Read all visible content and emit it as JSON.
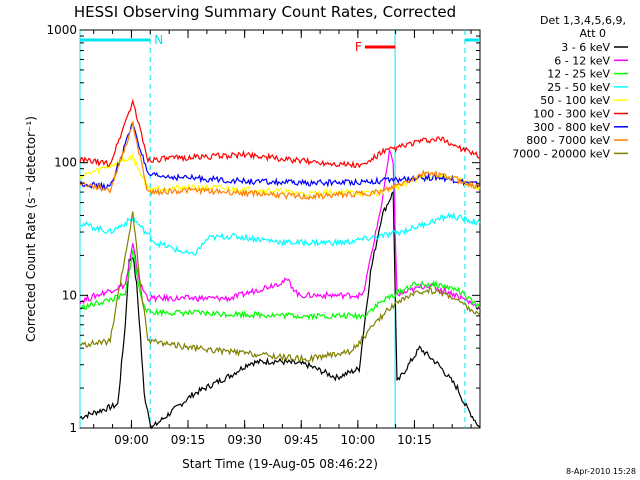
{
  "chart_data": {
    "type": "line",
    "title": "HESSI Observing Summary Count Rates, Corrected",
    "xlabel": "Start Time (19-Aug-05 08:46:22)",
    "ylabel": "Corrected Count Rate (s⁻¹ detector⁻¹)",
    "yscale": "log",
    "ylim": [
      1,
      1000
    ],
    "xlim_minutes_after_start": [
      0,
      106
    ],
    "x_tick_labels": [
      "09:00",
      "09:15",
      "09:30",
      "09:45",
      "10:00",
      "10:15"
    ],
    "y_tick_labels": [
      "1",
      "10",
      "100",
      "1000"
    ],
    "legend_header": [
      "Det 1,3,4,5,6,9,",
      "Att 0"
    ],
    "legend_placement": "right",
    "date_stamp": "8-Apr-2010 15:28",
    "flags": [
      {
        "label": "N",
        "color": "#00e5ee",
        "segments": [
          [
            0,
            18.6
          ],
          [
            102,
            106
          ]
        ]
      },
      {
        "label": "F",
        "color": "#ff0000",
        "segments": [
          [
            75.5,
            83.5
          ]
        ]
      }
    ],
    "boundary_lines_minutes": [
      0,
      18.6,
      83.5,
      102
    ],
    "series": [
      {
        "name": "3 - 6 keV",
        "color": "#000000",
        "points": [
          [
            0,
            1.2
          ],
          [
            10,
            1.5
          ],
          [
            12,
            6
          ],
          [
            13,
            18
          ],
          [
            14,
            20
          ],
          [
            15,
            12
          ],
          [
            16,
            5
          ],
          [
            17,
            1.8
          ],
          [
            19,
            1
          ],
          [
            30,
            1.8
          ],
          [
            40,
            2.5
          ],
          [
            45,
            3.1
          ],
          [
            52,
            3.2
          ],
          [
            60,
            3
          ],
          [
            68,
            2.4
          ],
          [
            74,
            2.8
          ],
          [
            77,
            15
          ],
          [
            80,
            40
          ],
          [
            83,
            60
          ],
          [
            84,
            2.2
          ],
          [
            90,
            4
          ],
          [
            95,
            3
          ],
          [
            100,
            2
          ],
          [
            102,
            1.5
          ],
          [
            106,
            1
          ]
        ]
      },
      {
        "name": "6 - 12 keV",
        "color": "#ff00ff",
        "points": [
          [
            0,
            9
          ],
          [
            12,
            12
          ],
          [
            14,
            24
          ],
          [
            16,
            12
          ],
          [
            18,
            9.5
          ],
          [
            40,
            9.5
          ],
          [
            55,
            13
          ],
          [
            58,
            10
          ],
          [
            75,
            10
          ],
          [
            80,
            50
          ],
          [
            82,
            120
          ],
          [
            83,
            100
          ],
          [
            84,
            10
          ],
          [
            92,
            12
          ],
          [
            100,
            10
          ],
          [
            106,
            8
          ]
        ]
      },
      {
        "name": "12 - 25 keV",
        "color": "#00ff00",
        "points": [
          [
            0,
            8
          ],
          [
            12,
            10
          ],
          [
            14,
            22
          ],
          [
            16,
            10
          ],
          [
            18,
            7.5
          ],
          [
            60,
            7
          ],
          [
            75,
            7
          ],
          [
            80,
            9
          ],
          [
            83,
            10
          ],
          [
            88,
            12
          ],
          [
            95,
            12
          ],
          [
            100,
            11
          ],
          [
            106,
            8
          ]
        ]
      },
      {
        "name": "25 - 50 keV",
        "color": "#00ffff",
        "points": [
          [
            0,
            35
          ],
          [
            8,
            30
          ],
          [
            14,
            38
          ],
          [
            20,
            25
          ],
          [
            30,
            20
          ],
          [
            34,
            27
          ],
          [
            40,
            28
          ],
          [
            55,
            25
          ],
          [
            70,
            25
          ],
          [
            80,
            28
          ],
          [
            85,
            30
          ],
          [
            92,
            35
          ],
          [
            98,
            40
          ],
          [
            106,
            35
          ]
        ]
      },
      {
        "name": "50 - 100 keV",
        "color": "#ffff00",
        "points": [
          [
            0,
            78
          ],
          [
            14,
            110
          ],
          [
            18,
            64
          ],
          [
            30,
            65
          ],
          [
            50,
            62
          ],
          [
            60,
            58
          ],
          [
            70,
            60
          ],
          [
            78,
            58
          ],
          [
            84,
            66
          ],
          [
            92,
            80
          ],
          [
            98,
            78
          ],
          [
            106,
            65
          ]
        ]
      },
      {
        "name": "100 - 300 keV",
        "color": "#ff0000",
        "points": [
          [
            0,
            105
          ],
          [
            8,
            98
          ],
          [
            14,
            290
          ],
          [
            18,
            105
          ],
          [
            30,
            110
          ],
          [
            45,
            115
          ],
          [
            55,
            105
          ],
          [
            65,
            100
          ],
          [
            75,
            95
          ],
          [
            80,
            120
          ],
          [
            90,
            145
          ],
          [
            96,
            150
          ],
          [
            106,
            110
          ]
        ]
      },
      {
        "name": "300 - 800 keV",
        "color": "#0000ff",
        "points": [
          [
            0,
            70
          ],
          [
            8,
            65
          ],
          [
            14,
            200
          ],
          [
            18,
            80
          ],
          [
            35,
            75
          ],
          [
            45,
            72
          ],
          [
            60,
            70
          ],
          [
            75,
            72
          ],
          [
            84,
            74
          ],
          [
            95,
            78
          ],
          [
            106,
            68
          ]
        ]
      },
      {
        "name": "800 - 7000 keV",
        "color": "#ff8000",
        "points": [
          [
            0,
            70
          ],
          [
            8,
            62
          ],
          [
            14,
            195
          ],
          [
            18,
            60
          ],
          [
            30,
            62
          ],
          [
            50,
            58
          ],
          [
            60,
            55
          ],
          [
            72,
            58
          ],
          [
            80,
            60
          ],
          [
            92,
            85
          ],
          [
            98,
            78
          ],
          [
            106,
            65
          ]
        ]
      },
      {
        "name": "7000 - 20000 keV",
        "color": "#808000",
        "points": [
          [
            0,
            4.2
          ],
          [
            8,
            4.5
          ],
          [
            14,
            42
          ],
          [
            16,
            12
          ],
          [
            18,
            4.6
          ],
          [
            30,
            4
          ],
          [
            50,
            3.5
          ],
          [
            60,
            3.3
          ],
          [
            72,
            3.8
          ],
          [
            80,
            7
          ],
          [
            84,
            9
          ],
          [
            92,
            11
          ],
          [
            98,
            10
          ],
          [
            106,
            7
          ]
        ]
      }
    ]
  }
}
